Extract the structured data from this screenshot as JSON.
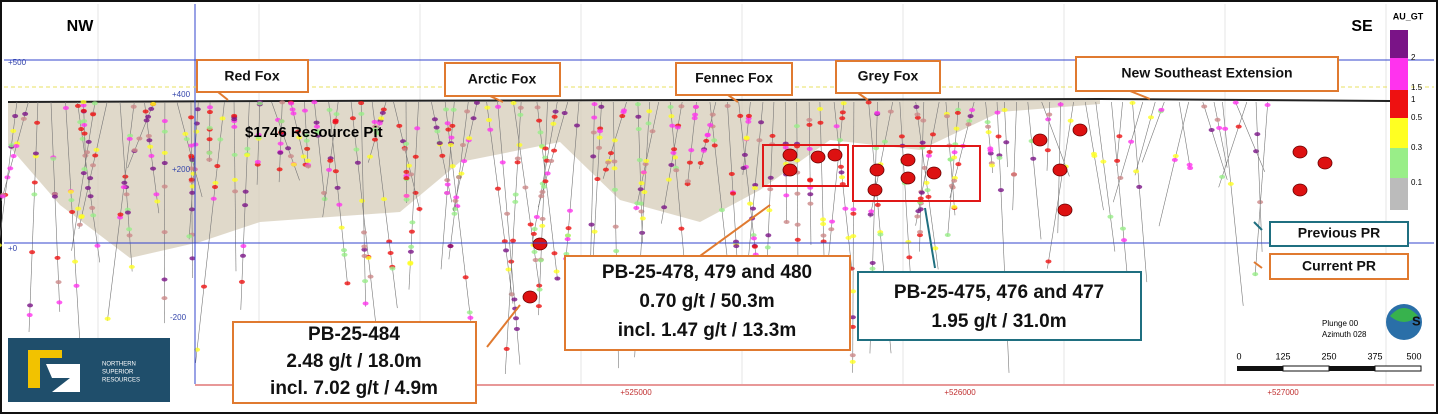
{
  "labels": {
    "nw": "NW",
    "se": "SE"
  },
  "legend": {
    "title": "AU_GT",
    "values": [
      "2",
      "1.5",
      "1",
      "0.5",
      "0.3",
      "0.1"
    ]
  },
  "elevations": [
    "+500",
    "+400",
    "+200",
    "+0",
    "-200"
  ],
  "eastings": [
    "+525000",
    "+526000",
    "+527000"
  ],
  "targets": [
    "Red Fox",
    "Arctic Fox",
    "Fennec Fox",
    "Grey Fox",
    "New Southeast Extension"
  ],
  "pit_label": "$1746 Resource Pit",
  "callouts": [
    {
      "lines": [
        "PB-25-484",
        "2.48 g/t  / 18.0m",
        "incl. 7.02 g/t / 4.9m"
      ]
    },
    {
      "lines": [
        "PB-25-478, 479 and 480",
        "0.70 g/t / 50.3m",
        "incl. 1.47 g/t / 13.3m"
      ]
    },
    {
      "lines": [
        "PB-25-475, 476 and 477",
        "1.95 g/t / 31.0m"
      ]
    }
  ],
  "pr_legend": [
    "Previous PR",
    "Current PR"
  ],
  "orientation": [
    "Plunge 00",
    "Azimuth 028"
  ],
  "scale": [
    "0",
    "125",
    "250",
    "375",
    "500"
  ],
  "logo": [
    "NORTHERN",
    "SUPERIOR",
    "RESOURCES"
  ]
}
